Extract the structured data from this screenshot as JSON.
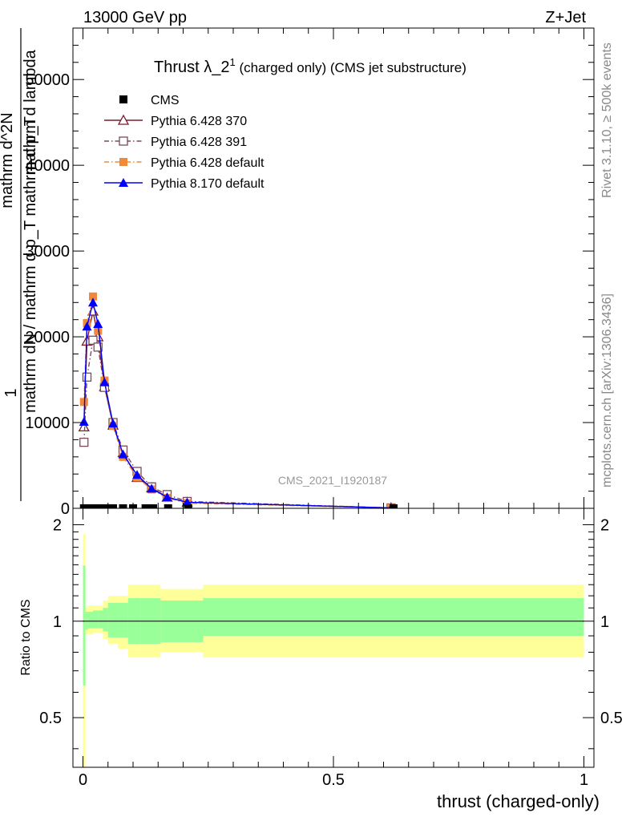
{
  "header": {
    "left": "13000 GeV pp",
    "right": "Z+Jet"
  },
  "side_notes": {
    "rivet": "Rivet 3.1.10, ≥ 500k events",
    "mcplots": "mcplots.cern.ch [arXiv:1306.3436]"
  },
  "watermark": "CMS_2021_I1920187",
  "chart_data": [
    {
      "type": "line",
      "title": "Thrust λ_2",
      "title_sup": "1",
      "title_suffix": " (charged only) (CMS jet substructure)",
      "xlabel": "thrust (charged-only)",
      "ylabel_lines": [
        "1",
        "mathrm dN / mathrm d p_T mathrm d p_T",
        "mathrm d^2N / mathrm d lambda"
      ],
      "ylabel": "mathrm dN / mathrm d p_T mathrm d p_T",
      "ylabel_top": "mathrm d^2N",
      "ylabel_bottom": "mathrm d lambda",
      "ylabel_num": "1",
      "xlim": [
        -0.02,
        1.02
      ],
      "ylim": [
        0,
        56000
      ],
      "xticks": [
        0,
        0.5,
        1
      ],
      "xtick_labels": [
        "0",
        "0.5",
        "1"
      ],
      "yticks": [
        0,
        10000,
        20000,
        30000,
        40000,
        50000
      ],
      "ytick_labels": [
        "0",
        "10000",
        "20000",
        "30000",
        "40000",
        "50000"
      ],
      "legend_position": "top-left",
      "series": [
        {
          "name": "CMS",
          "color": "#000000",
          "marker": "square-filled",
          "line": "none",
          "x": [
            0.002,
            0.006,
            0.011,
            0.016,
            0.022,
            0.028,
            0.035,
            0.045,
            0.06,
            0.08,
            0.1,
            0.125,
            0.14,
            0.17,
            0.21,
            0.62
          ],
          "y": [
            0,
            0,
            0,
            0,
            0,
            0,
            0,
            0,
            0,
            0,
            0,
            0,
            0,
            0,
            0,
            0
          ]
        },
        {
          "name": "Pythia 6.428 370",
          "color": "#7a1b2b",
          "marker": "triangle-open",
          "line": "solid",
          "x": [
            0.002,
            0.008,
            0.02,
            0.03,
            0.043,
            0.06,
            0.08,
            0.108,
            0.137,
            0.168,
            0.208,
            0.615
          ],
          "y": [
            9500,
            19500,
            23000,
            20000,
            14200,
            9700,
            6500,
            3600,
            2400,
            1300,
            700,
            50
          ]
        },
        {
          "name": "Pythia 6.428 391",
          "color": "#7a4b5b",
          "marker": "square-open",
          "line": "dashdot",
          "x": [
            0.002,
            0.008,
            0.02,
            0.03,
            0.043,
            0.06,
            0.08,
            0.108,
            0.137,
            0.168,
            0.208,
            0.615
          ],
          "y": [
            7700,
            15300,
            19600,
            18800,
            14100,
            10000,
            6800,
            4300,
            2500,
            1600,
            800,
            50
          ]
        },
        {
          "name": "Pythia 6.428 default",
          "color": "#f08a3a",
          "marker": "square-filled",
          "line": "dashdot",
          "x": [
            0.002,
            0.008,
            0.02,
            0.03,
            0.043,
            0.06,
            0.08,
            0.108,
            0.137,
            0.168,
            0.208,
            0.615
          ],
          "y": [
            12400,
            21600,
            24700,
            20700,
            14900,
            9600,
            6000,
            3600,
            2200,
            1200,
            600,
            50
          ]
        },
        {
          "name": "Pythia 8.170 default",
          "color": "#0000ff",
          "marker": "triangle-filled",
          "line": "solid",
          "x": [
            0.002,
            0.008,
            0.02,
            0.03,
            0.043,
            0.06,
            0.08,
            0.108,
            0.137,
            0.168,
            0.208,
            0.615
          ],
          "y": [
            10100,
            21200,
            24000,
            21500,
            14700,
            9900,
            6300,
            3900,
            2300,
            1300,
            700,
            50
          ]
        }
      ]
    },
    {
      "type": "area",
      "ylabel": "Ratio to CMS",
      "xlim": [
        -0.02,
        1.02
      ],
      "ylim": [
        0.35,
        2.25
      ],
      "yticks": [
        0.5,
        1,
        2
      ],
      "ytick_labels": [
        "0.5",
        "1",
        "2"
      ],
      "reference_line": 1,
      "bin_edges": [
        0.0,
        0.005,
        0.01,
        0.02,
        0.03,
        0.04,
        0.05,
        0.07,
        0.09,
        0.115,
        0.155,
        0.2,
        0.24,
        1.0
      ],
      "inner_band": {
        "color": "#99ff99",
        "low": [
          0.63,
          0.94,
          0.95,
          0.95,
          0.95,
          0.93,
          0.89,
          0.89,
          0.85,
          0.85,
          0.86,
          0.86,
          0.9
        ],
        "high": [
          1.49,
          1.07,
          1.07,
          1.08,
          1.08,
          1.1,
          1.14,
          1.14,
          1.18,
          1.18,
          1.16,
          1.16,
          1.18
        ]
      },
      "outer_band": {
        "color": "#ffff99",
        "low": [
          0.35,
          0.91,
          0.91,
          0.92,
          0.92,
          0.88,
          0.85,
          0.82,
          0.77,
          0.77,
          0.8,
          0.8,
          0.77
        ],
        "high": [
          1.87,
          1.1,
          1.12,
          1.12,
          1.12,
          1.16,
          1.2,
          1.2,
          1.3,
          1.3,
          1.26,
          1.26,
          1.3
        ]
      }
    }
  ]
}
